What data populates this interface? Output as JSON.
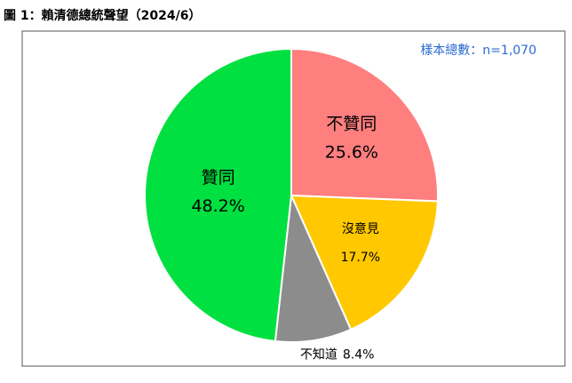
{
  "chart_data": {
    "type": "pie",
    "title": "圖 1：賴清德總統聲望（2024/6）",
    "annotation": "樣本總數：n=1,070",
    "categories": [
      "不贊同",
      "沒意見",
      "不知道",
      "贊同"
    ],
    "values": [
      25.6,
      17.7,
      8.4,
      48.2
    ],
    "value_labels": [
      "25.6%",
      "17.7%",
      "8.4%",
      "48.2%"
    ],
    "colors": [
      "#ff7f7f",
      "#ffc800",
      "#8c8c8c",
      "#00e040"
    ]
  }
}
